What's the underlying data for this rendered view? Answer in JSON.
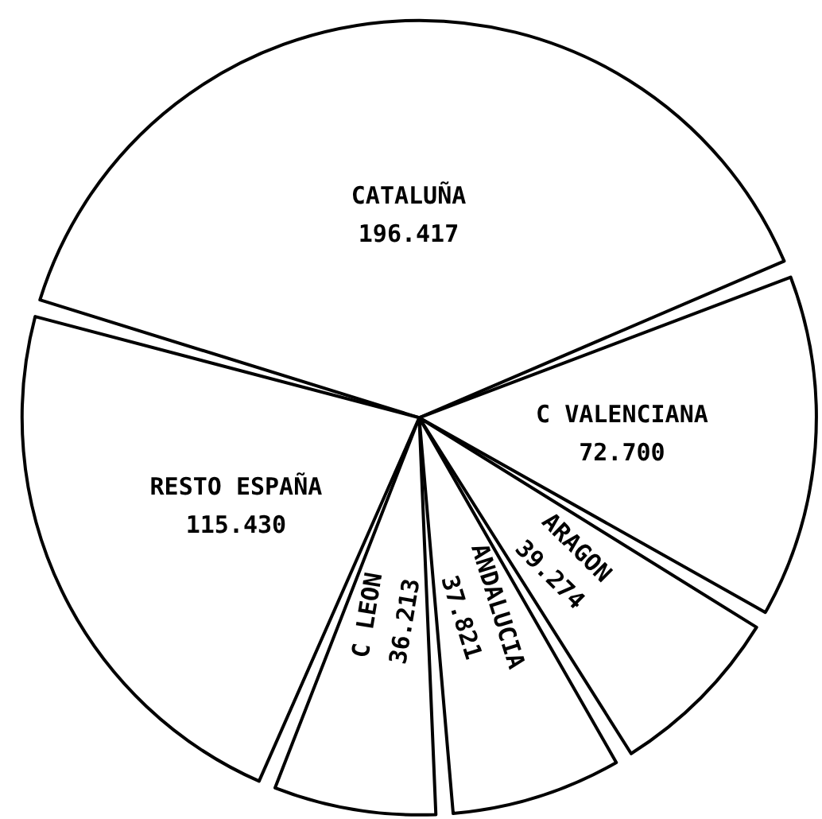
{
  "chart_data": {
    "type": "pie",
    "categories": [
      "CATALUÑA",
      "C VALENCIANA",
      "ARAGON",
      "ANDALUCIA",
      "C LEON",
      "RESTO ESPAÑA"
    ],
    "values": [
      196417,
      72700,
      39274,
      37821,
      36213,
      115430
    ],
    "value_labels": [
      "196.417",
      "72.700",
      "39.274",
      "37.821",
      "36.213",
      "115.430"
    ],
    "colors": [
      "#ffffff",
      "#ffffff",
      "#ffffff",
      "#ffffff",
      "#ffffff",
      "#ffffff"
    ],
    "legend": false
  }
}
